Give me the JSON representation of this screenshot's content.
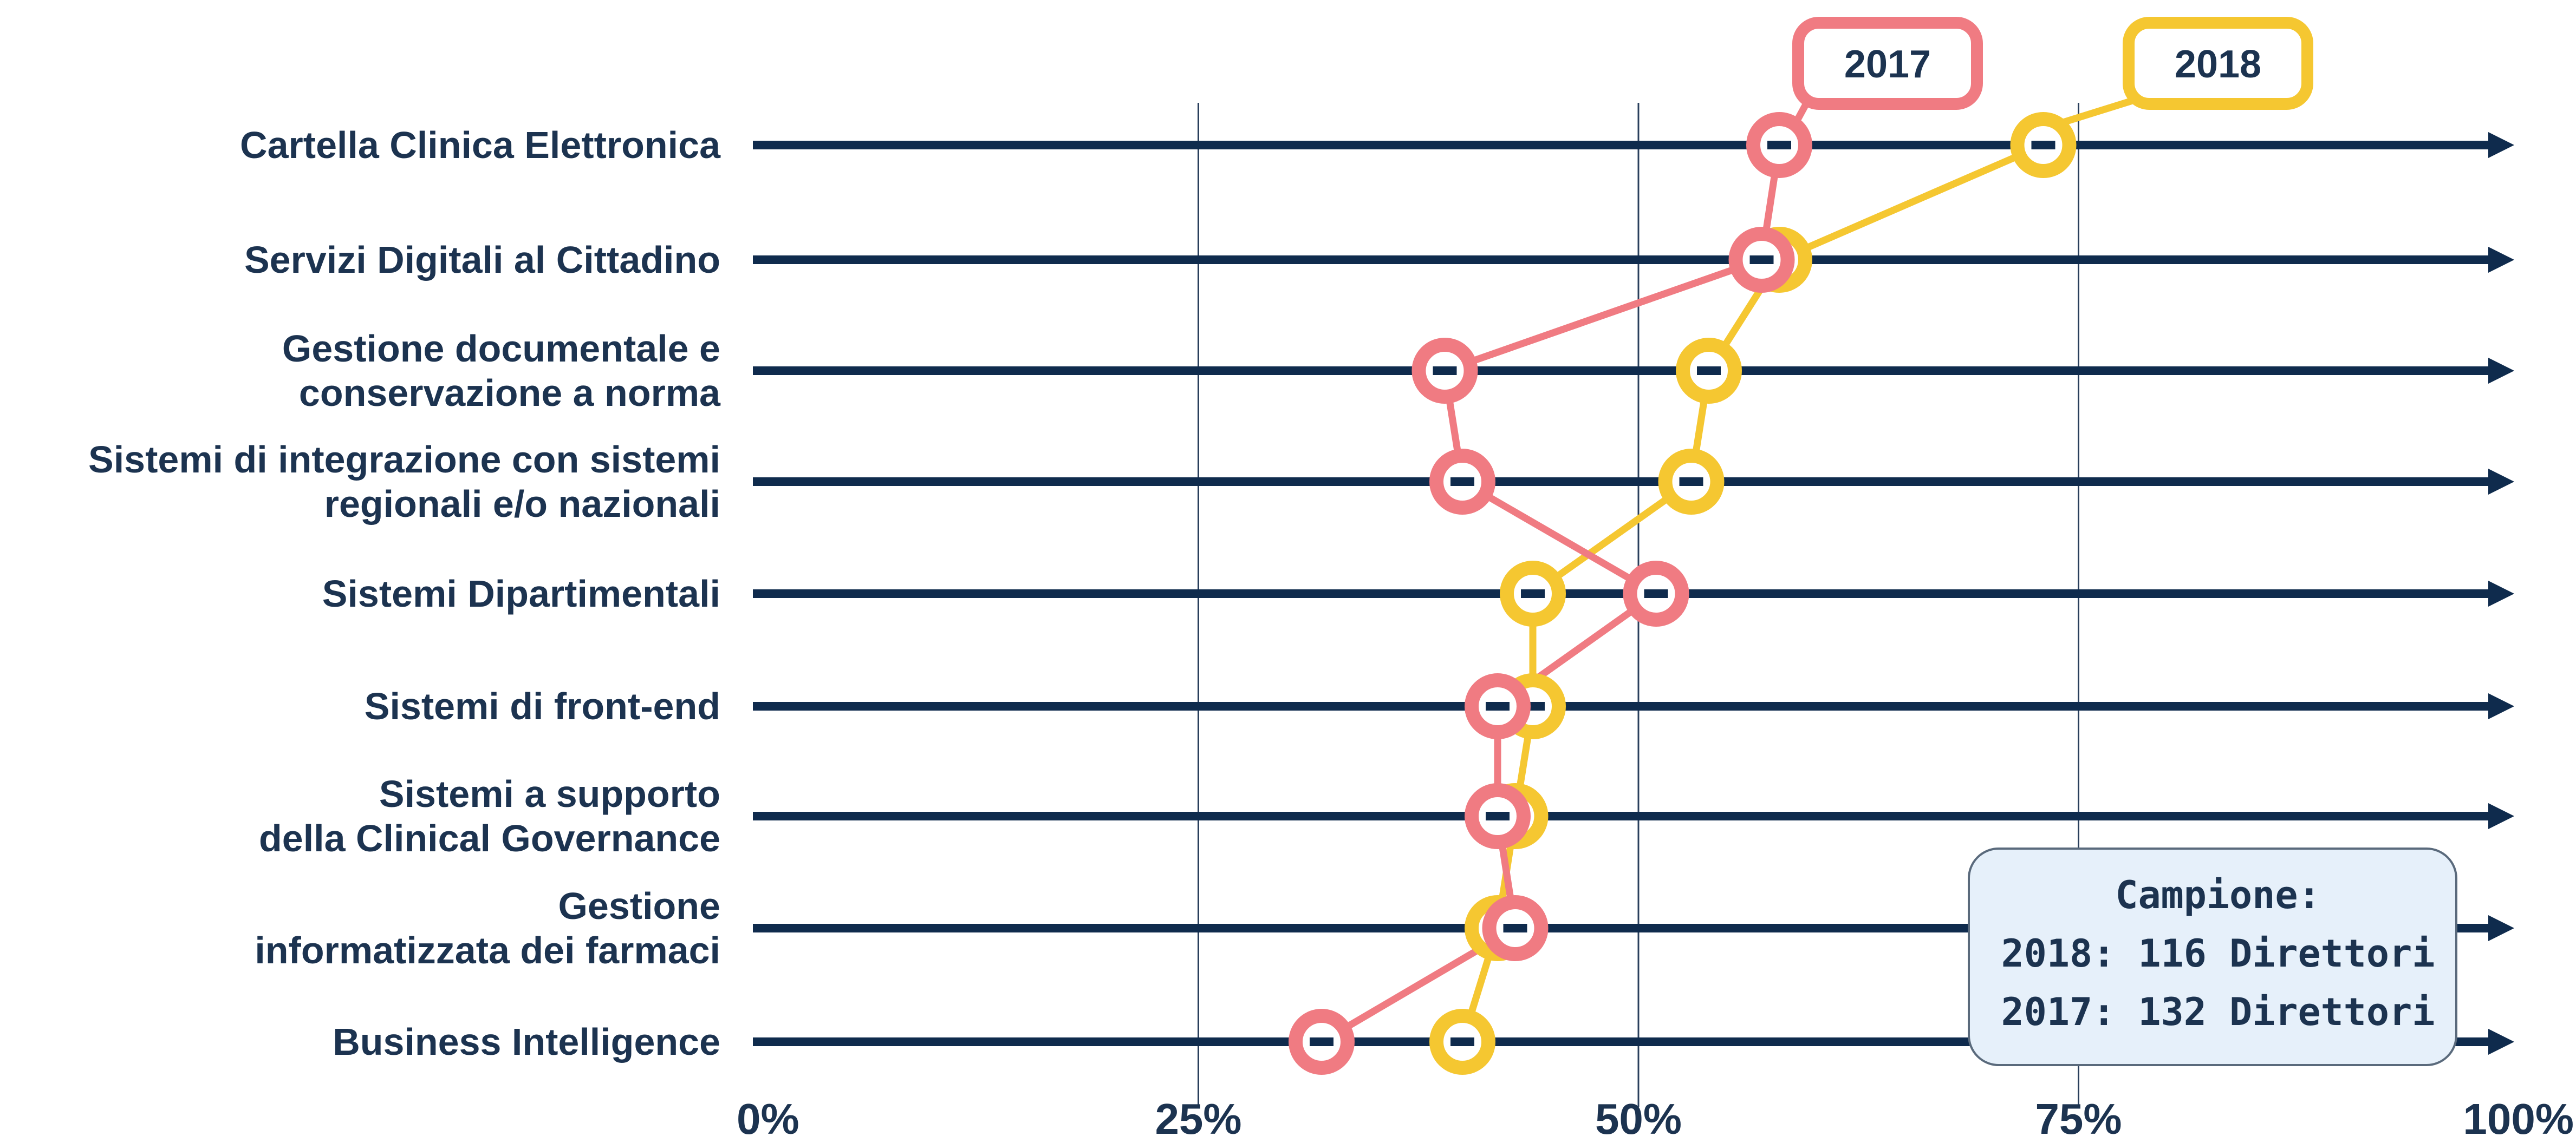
{
  "chart_data": {
    "type": "line",
    "orientation": "horizontal",
    "categories": [
      [
        "Cartella Clinica Elettronica"
      ],
      [
        "Servizi Digitali al Cittadino"
      ],
      [
        "Gestione documentale e",
        "conservazione a norma"
      ],
      [
        "Sistemi di integrazione con sistemi",
        "regionali e/o nazionali"
      ],
      [
        "Sistemi Dipartimentali"
      ],
      [
        "Sistemi di front-end"
      ],
      [
        "Sistemi a supporto",
        "della Clinical Governance"
      ],
      [
        "Gestione",
        "informatizzata dei farmaci"
      ],
      [
        "Business Intelligence"
      ]
    ],
    "series": [
      {
        "name": "2017",
        "color": "#f07b82",
        "values": [
          58,
          57,
          39,
          40,
          51,
          42,
          42,
          43,
          32
        ]
      },
      {
        "name": "2018",
        "color": "#f5c731",
        "values": [
          73,
          58,
          54,
          53,
          44,
          44,
          43,
          42,
          40
        ]
      }
    ],
    "x_ticks": [
      "0%",
      "25%",
      "50%",
      "75%",
      "100%"
    ],
    "x_tick_values": [
      0,
      25,
      50,
      75,
      100
    ],
    "xlim": [
      0,
      100
    ],
    "grid": true,
    "legend_placement": "top-right",
    "axis_color": "#0f2b4d",
    "grid_color": "#2a3f5c",
    "note": {
      "lines": [
        "Campione:",
        "2018: 116 Direttori",
        "2017: 132 Direttori"
      ],
      "fill": "#e6f0fa",
      "border": "#5a6a7c"
    }
  }
}
